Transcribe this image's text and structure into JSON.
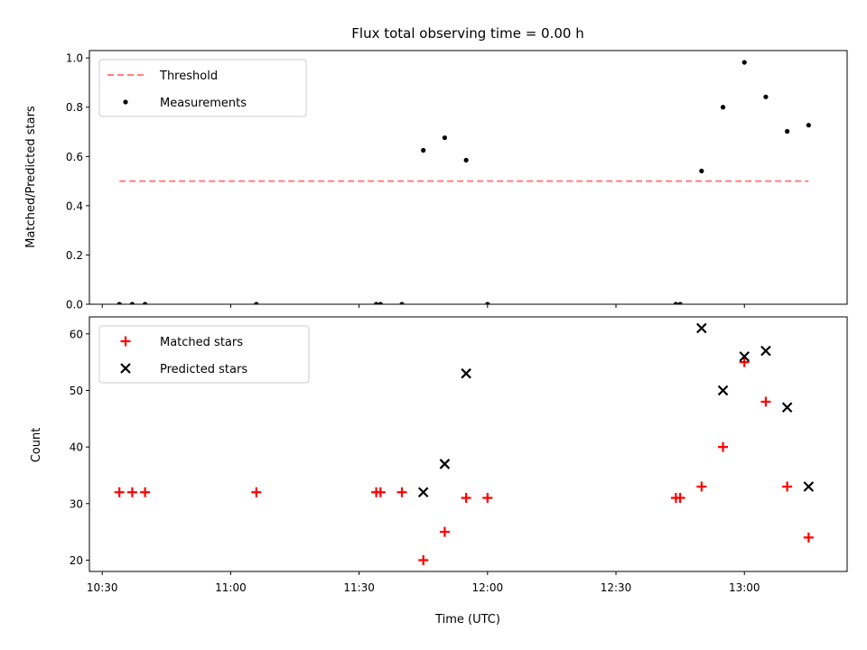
{
  "chart_data": [
    {
      "type": "scatter",
      "title": "Flux total observing time = 0.00 h",
      "xlabel": "",
      "ylabel": "Matched/Predicted stars",
      "ylim": [
        0,
        1.03
      ],
      "yticks": [
        0.0,
        0.2,
        0.4,
        0.6,
        0.8,
        1.0
      ],
      "legend_position": "top-left",
      "series": [
        {
          "name": "Threshold",
          "kind": "dashed-line",
          "color": "#ff7f7f",
          "x": [
            "10:34",
            "13:15"
          ],
          "y": [
            0.5,
            0.5
          ]
        },
        {
          "name": "Measurements",
          "kind": "dot",
          "color": "#000000",
          "x": [
            "10:34",
            "10:37",
            "10:40",
            "11:06",
            "11:34",
            "11:35",
            "11:40",
            "11:45",
            "11:50",
            "11:55",
            "12:00",
            "12:44",
            "12:45",
            "12:50",
            "12:55",
            "13:00",
            "13:05",
            "13:10",
            "13:15"
          ],
          "y": [
            0,
            0,
            0,
            0,
            0,
            0,
            0,
            0.625,
            0.676,
            0.585,
            0,
            0,
            0,
            0.541,
            0.8,
            0.982,
            0.842,
            0.702,
            0.727
          ]
        }
      ]
    },
    {
      "type": "scatter",
      "title": "",
      "xlabel": "Time (UTC)",
      "ylabel": "Count",
      "ylim": [
        18,
        63
      ],
      "yticks": [
        20,
        30,
        40,
        50,
        60
      ],
      "xticks": [
        "10:30",
        "11:00",
        "11:30",
        "12:00",
        "12:30",
        "13:00"
      ],
      "legend_position": "top-left",
      "series": [
        {
          "name": "Matched stars",
          "kind": "plus",
          "color": "#ff0000",
          "x": [
            "10:34",
            "10:37",
            "10:40",
            "11:06",
            "11:34",
            "11:35",
            "11:40",
            "11:45",
            "11:50",
            "11:55",
            "12:00",
            "12:44",
            "12:45",
            "12:50",
            "12:55",
            "13:00",
            "13:05",
            "13:10",
            "13:15"
          ],
          "y": [
            32,
            32,
            32,
            32,
            32,
            32,
            32,
            20,
            25,
            31,
            31,
            31,
            31,
            33,
            40,
            55,
            48,
            33,
            24
          ]
        },
        {
          "name": "Predicted stars",
          "kind": "x",
          "color": "#000000",
          "x": [
            "11:45",
            "11:50",
            "11:55",
            "12:50",
            "12:55",
            "13:00",
            "13:05",
            "13:10",
            "13:15"
          ],
          "y": [
            32,
            37,
            53,
            61,
            50,
            56,
            57,
            47,
            33
          ]
        }
      ]
    }
  ]
}
